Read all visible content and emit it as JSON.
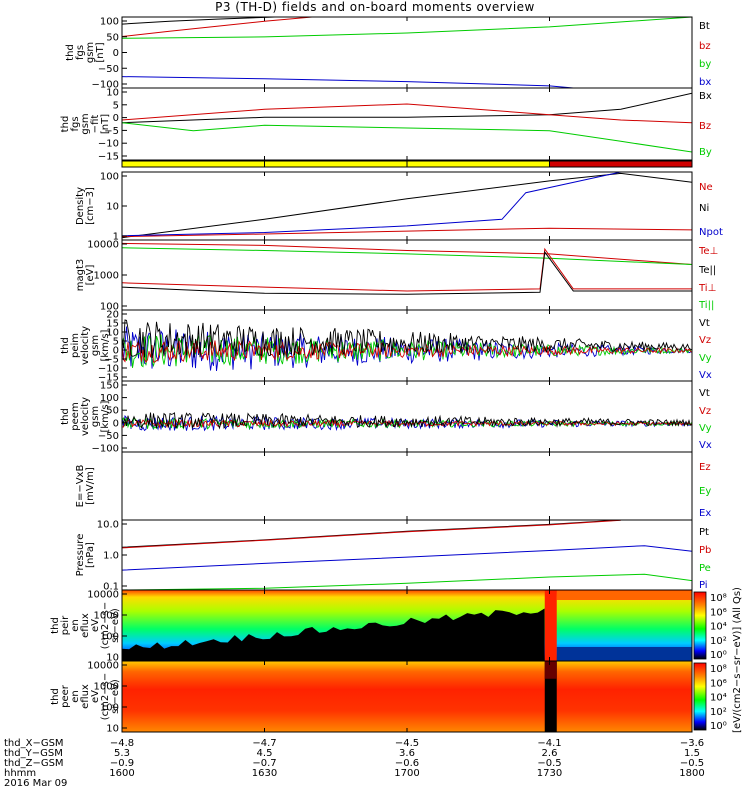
{
  "title": "P3 (TH-D) fields and on-board moments overview",
  "colors": {
    "black": "#000000",
    "red": "#d00000",
    "green": "#00cc00",
    "blue": "#0000cc",
    "yellow": "#ffff00"
  },
  "chart_data": [
    {
      "panel": "fgs_mag",
      "type": "line",
      "ylabel": [
        "thd",
        "fgs",
        "gsm",
        "[nT]"
      ],
      "yticks": [
        "100",
        "50",
        "0",
        "−50",
        "−100"
      ],
      "ylim": [
        -100,
        100
      ],
      "legend": [
        {
          "name": "Bt",
          "color": "#000000"
        },
        {
          "name": "bz",
          "color": "#d00000"
        },
        {
          "name": "by",
          "color": "#00cc00"
        },
        {
          "name": "bx",
          "color": "#0000cc"
        }
      ],
      "series": [
        {
          "name": "Bt",
          "x": [
            1600,
            1610,
            1620,
            1630,
            1640,
            1650
          ],
          "y": [
            80,
            88,
            94,
            99,
            104,
            110
          ]
        },
        {
          "name": "bz",
          "x": [
            1600,
            1610,
            1620,
            1630,
            1640
          ],
          "y": [
            45,
            60,
            74,
            88,
            100
          ]
        },
        {
          "name": "by",
          "x": [
            1600,
            1630,
            1700,
            1730,
            1800
          ],
          "y": [
            40,
            44,
            55,
            72,
            100
          ]
        },
        {
          "name": "bx",
          "x": [
            1600,
            1630,
            1700,
            1730,
            1735
          ],
          "y": [
            -68,
            -74,
            -82,
            -94,
            -100
          ]
        }
      ]
    },
    {
      "panel": "fgs_mag_detrended",
      "type": "line",
      "ylabel": [
        "thd",
        "fgs",
        "gsm",
        "−fit",
        "[nT]"
      ],
      "yticks": [
        "10",
        "5",
        "0",
        "−5",
        "−10",
        "−15"
      ],
      "ylim": [
        -17,
        10
      ],
      "legend": [
        {
          "name": "Bx",
          "color": "#000000"
        },
        {
          "name": "Bz",
          "color": "#d00000"
        },
        {
          "name": "By",
          "color": "#00cc00"
        }
      ],
      "series": [
        {
          "name": "Bx",
          "x": [
            1600,
            1630,
            1700,
            1730,
            1745,
            1800
          ],
          "y": [
            -3,
            -1,
            -1,
            0,
            2,
            8
          ]
        },
        {
          "name": "Bz",
          "x": [
            1600,
            1630,
            1700,
            1730,
            1745,
            1800
          ],
          "y": [
            -2,
            2,
            4,
            0,
            -2,
            -3
          ]
        },
        {
          "name": "By",
          "x": [
            1600,
            1615,
            1630,
            1700,
            1730,
            1745,
            1800
          ],
          "y": [
            -3,
            -6,
            -4,
            -5,
            -6,
            -10,
            -14
          ]
        }
      ]
    },
    {
      "panel": "mode_bar",
      "type": "bar",
      "segments": [
        {
          "x": [
            1600,
            1730
          ],
          "color": "#ffff00"
        },
        {
          "x": [
            1730,
            1800
          ],
          "color": "#d00000"
        }
      ]
    },
    {
      "panel": "density",
      "type": "line",
      "ylabel": [
        "Density",
        "[cm−3]"
      ],
      "yticks": [
        "100",
        "10",
        "1"
      ],
      "ylim": [
        1,
        200
      ],
      "log": true,
      "legend": [
        {
          "name": "Ne",
          "color": "#d00000"
        },
        {
          "name": "Ni",
          "color": "#000000"
        },
        {
          "name": "Npot",
          "color": "#0000cc"
        }
      ],
      "series": [
        {
          "name": "Ni",
          "x": [
            1600,
            1630,
            1700,
            1730,
            1745,
            1800
          ],
          "y": [
            1.2,
            5,
            25,
            100,
            180,
            90
          ]
        },
        {
          "name": "Ne",
          "x": [
            1600,
            1630,
            1700,
            1730,
            1800
          ],
          "y": [
            1.3,
            1.6,
            2.0,
            2.5,
            2.2
          ]
        },
        {
          "name": "Npot",
          "x": [
            1600,
            1630,
            1700,
            1720,
            1725,
            1745
          ],
          "y": [
            1.4,
            1.8,
            3,
            5,
            40,
            200
          ]
        }
      ]
    },
    {
      "panel": "temperature",
      "type": "line",
      "ylabel": [
        "magt3",
        "[eV]"
      ],
      "yticks": [
        "10000",
        "1000",
        "100"
      ],
      "ylim": [
        100,
        10000
      ],
      "log": true,
      "legend": [
        {
          "name": "Te⊥",
          "color": "#d00000"
        },
        {
          "name": "Te||",
          "color": "#000000"
        },
        {
          "name": "Ti⊥",
          "color": "#d00000"
        },
        {
          "name": "Ti||",
          "color": "#00cc00"
        }
      ],
      "series": [
        {
          "name": "Ti⊥",
          "x": [
            1600,
            1630,
            1700,
            1730,
            1800
          ],
          "y": [
            8000,
            7000,
            5000,
            4000,
            2000
          ]
        },
        {
          "name": "Ti||",
          "x": [
            1600,
            1630,
            1700,
            1730,
            1800
          ],
          "y": [
            6000,
            5000,
            4000,
            3000,
            2000
          ]
        },
        {
          "name": "Te⊥",
          "x": [
            1600,
            1630,
            1700,
            1728,
            1729,
            1735,
            1800
          ],
          "y": [
            600,
            450,
            350,
            400,
            5500,
            400,
            400
          ]
        },
        {
          "name": "Te||",
          "x": [
            1600,
            1630,
            1700,
            1728,
            1729,
            1735,
            1800
          ],
          "y": [
            450,
            300,
            280,
            320,
            4500,
            350,
            350
          ]
        }
      ]
    },
    {
      "panel": "peim_velocity",
      "type": "line",
      "ylabel": [
        "thd",
        "peim",
        "velocity",
        "gsm",
        "[km/s]"
      ],
      "yticks": [
        "20",
        "15",
        "10",
        "5",
        "0",
        "−5",
        "−10",
        "−15"
      ],
      "ylim": [
        -15,
        20
      ],
      "legend": [
        {
          "name": "Vt",
          "color": "#000000"
        },
        {
          "name": "Vz",
          "color": "#d00000"
        },
        {
          "name": "Vy",
          "color": "#00cc00"
        },
        {
          "name": "Vx",
          "color": "#0000cc"
        }
      ]
    },
    {
      "panel": "peem_velocity",
      "type": "line",
      "ylabel": [
        "thd",
        "peem",
        "velocity",
        "gsm",
        "[km/s]"
      ],
      "yticks": [
        "150",
        "100",
        "50",
        "0",
        "−50",
        "−100"
      ],
      "ylim": [
        -100,
        150
      ],
      "legend": [
        {
          "name": "Vt",
          "color": "#000000"
        },
        {
          "name": "Vz",
          "color": "#d00000"
        },
        {
          "name": "Vy",
          "color": "#00cc00"
        },
        {
          "name": "Vx",
          "color": "#0000cc"
        }
      ]
    },
    {
      "panel": "efield",
      "type": "line",
      "ylabel": [
        "E=−VxB",
        "[mV/m]"
      ],
      "yticks": [],
      "legend": [
        {
          "name": "Ez",
          "color": "#d00000"
        },
        {
          "name": "Ey",
          "color": "#00cc00"
        },
        {
          "name": "Ex",
          "color": "#0000cc"
        }
      ]
    },
    {
      "panel": "pressure",
      "type": "line",
      "ylabel": [
        "Pressure",
        "[nPa]"
      ],
      "yticks": [
        "10.0",
        "1.0",
        "0.1"
      ],
      "ylim": [
        0.07,
        20
      ],
      "log": true,
      "legend": [
        {
          "name": "Pt",
          "color": "#000000"
        },
        {
          "name": "Pb",
          "color": "#d00000"
        },
        {
          "name": "Pe",
          "color": "#00cc00"
        },
        {
          "name": "Pi",
          "color": "#0000cc"
        }
      ],
      "series": [
        {
          "name": "Pt",
          "x": [
            1600,
            1630,
            1700,
            1730,
            1745
          ],
          "y": [
            2.2,
            4,
            8,
            14,
            20
          ]
        },
        {
          "name": "Pb",
          "x": [
            1600,
            1630,
            1700,
            1730,
            1745
          ],
          "y": [
            2.1,
            3.9,
            7.8,
            13.5,
            19.5
          ]
        },
        {
          "name": "Pi",
          "x": [
            1600,
            1630,
            1700,
            1730,
            1750,
            1800
          ],
          "y": [
            0.35,
            0.6,
            1.0,
            1.7,
            2.5,
            1.6
          ]
        },
        {
          "name": "Pe",
          "x": [
            1600,
            1630,
            1700,
            1730,
            1750,
            1800
          ],
          "y": [
            0.07,
            0.08,
            0.12,
            0.2,
            0.25,
            0.15
          ]
        }
      ]
    },
    {
      "panel": "peir_spec",
      "type": "heatmap",
      "ylabel": [
        "thd",
        "peir",
        "en",
        "eflux",
        "eV",
        "(cm2−s−",
        "sr−eV)"
      ],
      "yticks": [
        "10000",
        "1000",
        "100",
        "10"
      ]
    },
    {
      "panel": "peer_spec",
      "type": "heatmap",
      "ylabel": [
        "thd",
        "peer",
        "en",
        "eflux",
        "eV",
        "(cm2−s−",
        "sr−eV)"
      ],
      "yticks": [
        "10000",
        "1000",
        "100",
        "10"
      ]
    }
  ],
  "colorbar": {
    "top_ticks": [
      "10⁸",
      "10⁶",
      "10⁴",
      "10²",
      "10⁰"
    ],
    "bottom_ticks": [
      "10⁸",
      "10⁶",
      "10⁴",
      "10²",
      "10⁰"
    ],
    "label": "[eV/(cm2−s−sr−eV)] (All Qs)"
  },
  "xaxis": {
    "hhmm": [
      "1600",
      "1630",
      "1700",
      "1730",
      "1800"
    ],
    "thd_X_GSM": [
      "−4.8",
      "−4.7",
      "−4.5",
      "−4.1",
      "−3.6"
    ],
    "thd_Y_GSM": [
      "5.3",
      "4.5",
      "3.6",
      "2.6",
      "1.5"
    ],
    "thd_Z_GSM": [
      "−0.9",
      "−0.7",
      "−0.6",
      "−0.5",
      "−0.5"
    ]
  },
  "footer": {
    "row_labels": [
      "thd_X−GSM",
      "thd_Y−GSM",
      "thd_Z−GSM",
      "hhmm"
    ],
    "date": "2016 Mar 09"
  }
}
